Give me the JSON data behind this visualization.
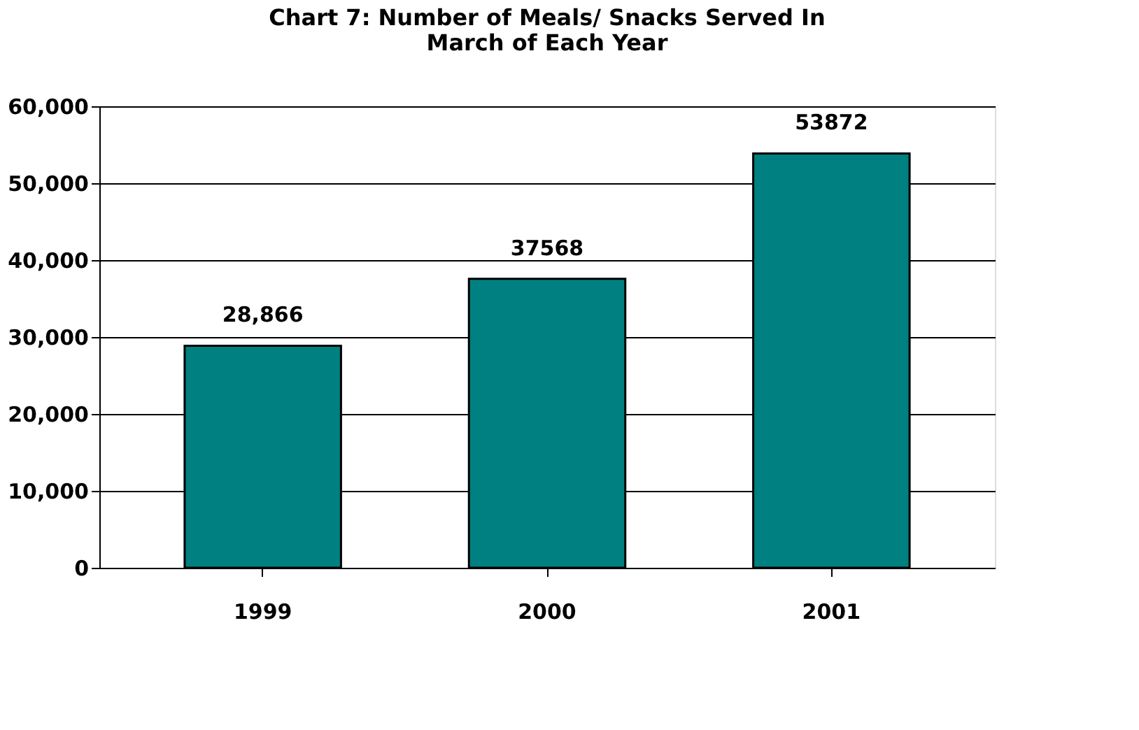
{
  "chart_data": {
    "type": "bar",
    "title": [
      "Chart 7: Number of Meals/ Snacks Served In",
      "March of Each Year"
    ],
    "categories": [
      "1999",
      "2000",
      "2001"
    ],
    "values": [
      28866,
      37568,
      53872
    ],
    "value_labels": [
      "28,866",
      "37568",
      "53872"
    ],
    "color": "#008080",
    "ylim": [
      0,
      60000
    ],
    "yticks": [
      0,
      {
        "value": 10000,
        "label": "10,000"
      },
      {
        "value": 20000,
        "label": "20,000"
      },
      {
        "value": 30000,
        "label": "30,000"
      },
      {
        "value": 40000,
        "label": "40,000"
      },
      {
        "value": 50000,
        "label": "50,000"
      },
      {
        "value": 60000,
        "label": "60,000"
      }
    ],
    "grid": "y"
  }
}
